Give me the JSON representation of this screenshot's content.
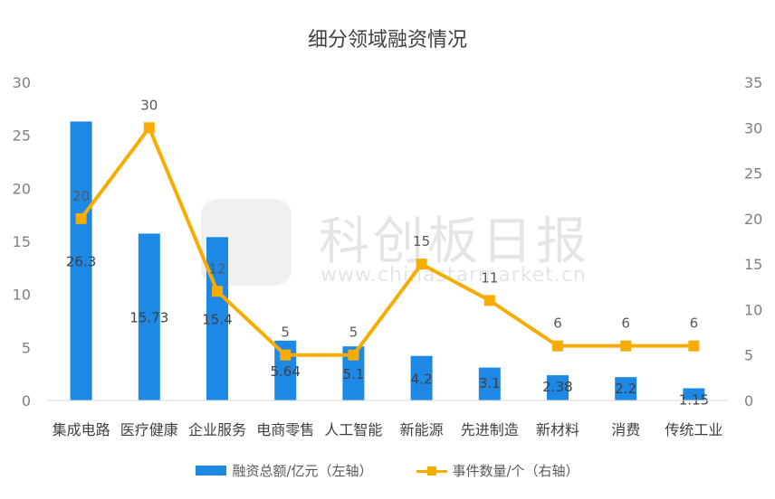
{
  "chart_data": {
    "type": "bar",
    "title": "细分领域融资情况",
    "categories": [
      "集成电路",
      "医疗健康",
      "企业服务",
      "电商零售",
      "人工智能",
      "新能源",
      "先进制造",
      "新材料",
      "消费",
      "传统工业"
    ],
    "series": [
      {
        "name": "融资总额/亿元（左轴）",
        "type": "bar",
        "axis": "left",
        "color": "#1e88e5",
        "values": [
          26.3,
          15.73,
          15.4,
          5.64,
          5.1,
          4.2,
          3.1,
          2.38,
          2.2,
          1.15
        ],
        "labels": [
          "26.3",
          "15.73",
          "15.4",
          "5.64",
          "5.1",
          "4.2",
          "3.1",
          "2.38",
          "2.2",
          "1.15"
        ]
      },
      {
        "name": "事件数量/个（右轴）",
        "type": "line",
        "axis": "right",
        "color": "#f8ac00",
        "values": [
          20,
          30,
          12,
          5,
          5,
          15,
          11,
          6,
          6,
          6
        ],
        "labels": [
          "20",
          "30",
          "12",
          "5",
          "5",
          "15",
          "11",
          "6",
          "6",
          "6"
        ]
      }
    ],
    "y_left": {
      "min": 0,
      "max": 30,
      "ticks": [
        "0",
        "5",
        "10",
        "15",
        "20",
        "25",
        "30"
      ]
    },
    "y_right": {
      "min": 0,
      "max": 35,
      "ticks": [
        "0",
        "5",
        "10",
        "15",
        "20",
        "25",
        "30",
        "35"
      ]
    },
    "grid": false,
    "legend_position": "bottom"
  },
  "watermark": {
    "text_cn": "科创板日报",
    "text_en": "www.chinastarmarket.cn"
  }
}
